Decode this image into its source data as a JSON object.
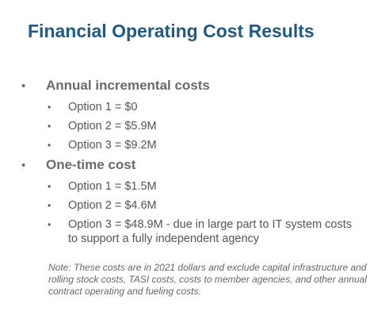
{
  "slide": {
    "title": "Financial Operating Cost Results",
    "bullet_glyph": "•",
    "sections": [
      {
        "heading": "Annual incremental costs",
        "items": [
          "Option 1 = $0",
          "Option 2 = $5.9M",
          "Option 3 = $9.2M"
        ]
      },
      {
        "heading": "One-time cost",
        "items": [
          "Option 1 = $1.5M",
          "Option 2 = $4.6M",
          "Option 3 = $48.9M - due in large part to IT system costs to support a fully independent agency"
        ]
      }
    ],
    "note": "Note: These costs are in 2021 dollars and exclude capital infrastructure and rolling stock costs, TASI costs, costs to member agencies, and other annual contract operating and fueling costs."
  },
  "colors": {
    "title": "#1f5a86",
    "heading": "#6a6a6a",
    "body": "#555555",
    "note": "#666666"
  }
}
